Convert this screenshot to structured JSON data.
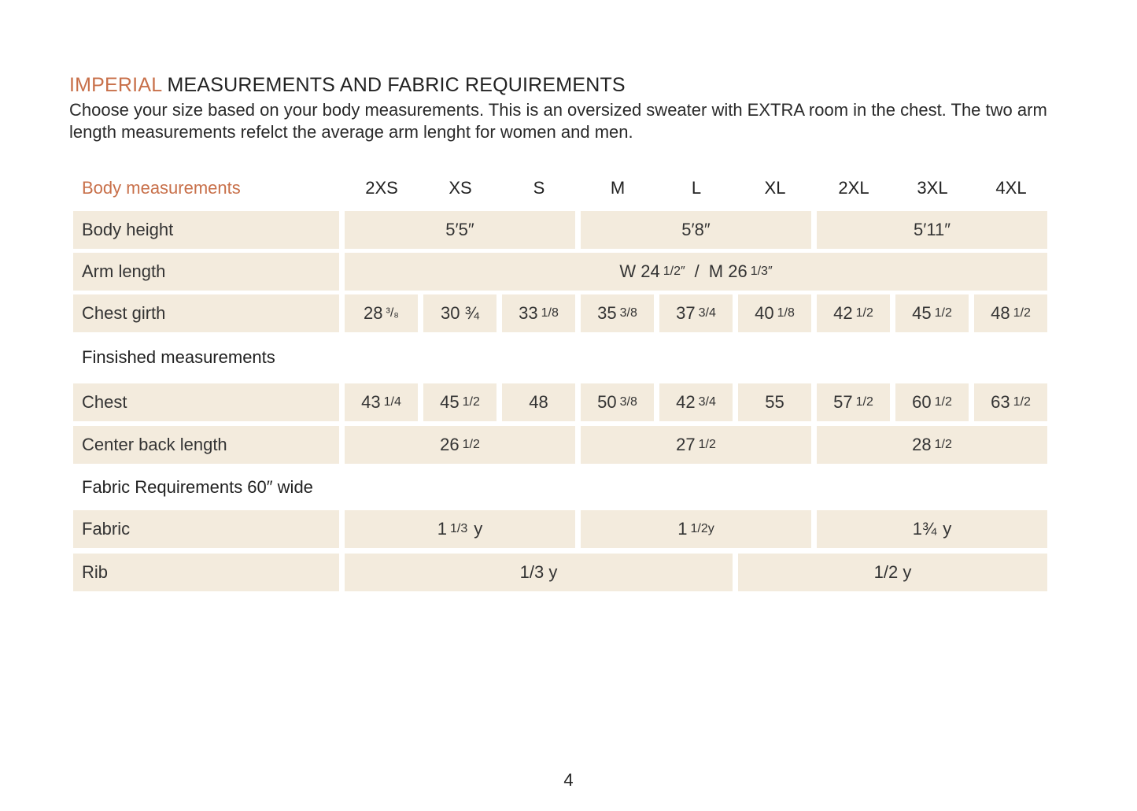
{
  "title": {
    "accent": "IMPERIAL",
    "rest": " MEASUREMENTS AND FABRIC REQUIREMENTS"
  },
  "intro": "Choose your size based on your body measurements. This is an oversized sweater with EXTRA room in the chest. The two arm length measurements refelct the average arm lenght for women and men.",
  "body_header": "Body measurements",
  "sizes": [
    "2XS",
    "XS",
    "S",
    "M",
    "L",
    "XL",
    "2XL",
    "3XL",
    "4XL"
  ],
  "rows": {
    "body_height": {
      "label": "Body height",
      "values": [
        "5′5″",
        "5′8″",
        "5′11″"
      ]
    },
    "arm_length": {
      "label": "Arm length",
      "value_w": "W 24",
      "frac_w": "1/2″",
      "sep": "/",
      "value_m": "M 26",
      "frac_m": "1/3″"
    },
    "chest_girth": {
      "label": "Chest girth",
      "values": [
        {
          "whole": "28",
          "frac": "³/₈"
        },
        {
          "whole": "30 ¾",
          "frac": ""
        },
        {
          "whole": "33",
          "frac": "1/8"
        },
        {
          "whole": "35",
          "frac": "3/8"
        },
        {
          "whole": "37",
          "frac": "3/4"
        },
        {
          "whole": "40",
          "frac": "1/8"
        },
        {
          "whole": "42",
          "frac": "1/2"
        },
        {
          "whole": "45",
          "frac": "1/2"
        },
        {
          "whole": "48",
          "frac": "1/2"
        }
      ]
    },
    "finished_header": "Finsished  measurements",
    "chest": {
      "label": "Chest",
      "values": [
        {
          "whole": "43",
          "frac": "1/4"
        },
        {
          "whole": "45",
          "frac": "1/2"
        },
        {
          "whole": "48",
          "frac": ""
        },
        {
          "whole": "50",
          "frac": "3/8"
        },
        {
          "whole": "42",
          "frac": "3/4"
        },
        {
          "whole": "55",
          "frac": ""
        },
        {
          "whole": "57",
          "frac": "1/2"
        },
        {
          "whole": "60",
          "frac": "1/2"
        },
        {
          "whole": "63",
          "frac": "1/2"
        }
      ]
    },
    "center_back": {
      "label": "Center back length",
      "values": [
        {
          "whole": "26",
          "frac": "1/2"
        },
        {
          "whole": "27",
          "frac": "1/2"
        },
        {
          "whole": "28",
          "frac": "1/2"
        }
      ]
    },
    "fabric_header": "Fabric Requirements 60″ wide",
    "fabric": {
      "label": "Fabric",
      "values": [
        {
          "whole": "1",
          "frac": "1/3",
          "unit": "y"
        },
        {
          "whole": "1",
          "frac": "1/2y",
          "unit": ""
        },
        {
          "whole": "1¾",
          "frac": "",
          "unit": "y"
        }
      ]
    },
    "rib": {
      "label": "Rib",
      "values": [
        "1/3 y",
        "1/2 y"
      ]
    }
  },
  "page_number": "4",
  "colors": {
    "accent": "#c8704a",
    "cell_bg": "#f3ebdd"
  }
}
